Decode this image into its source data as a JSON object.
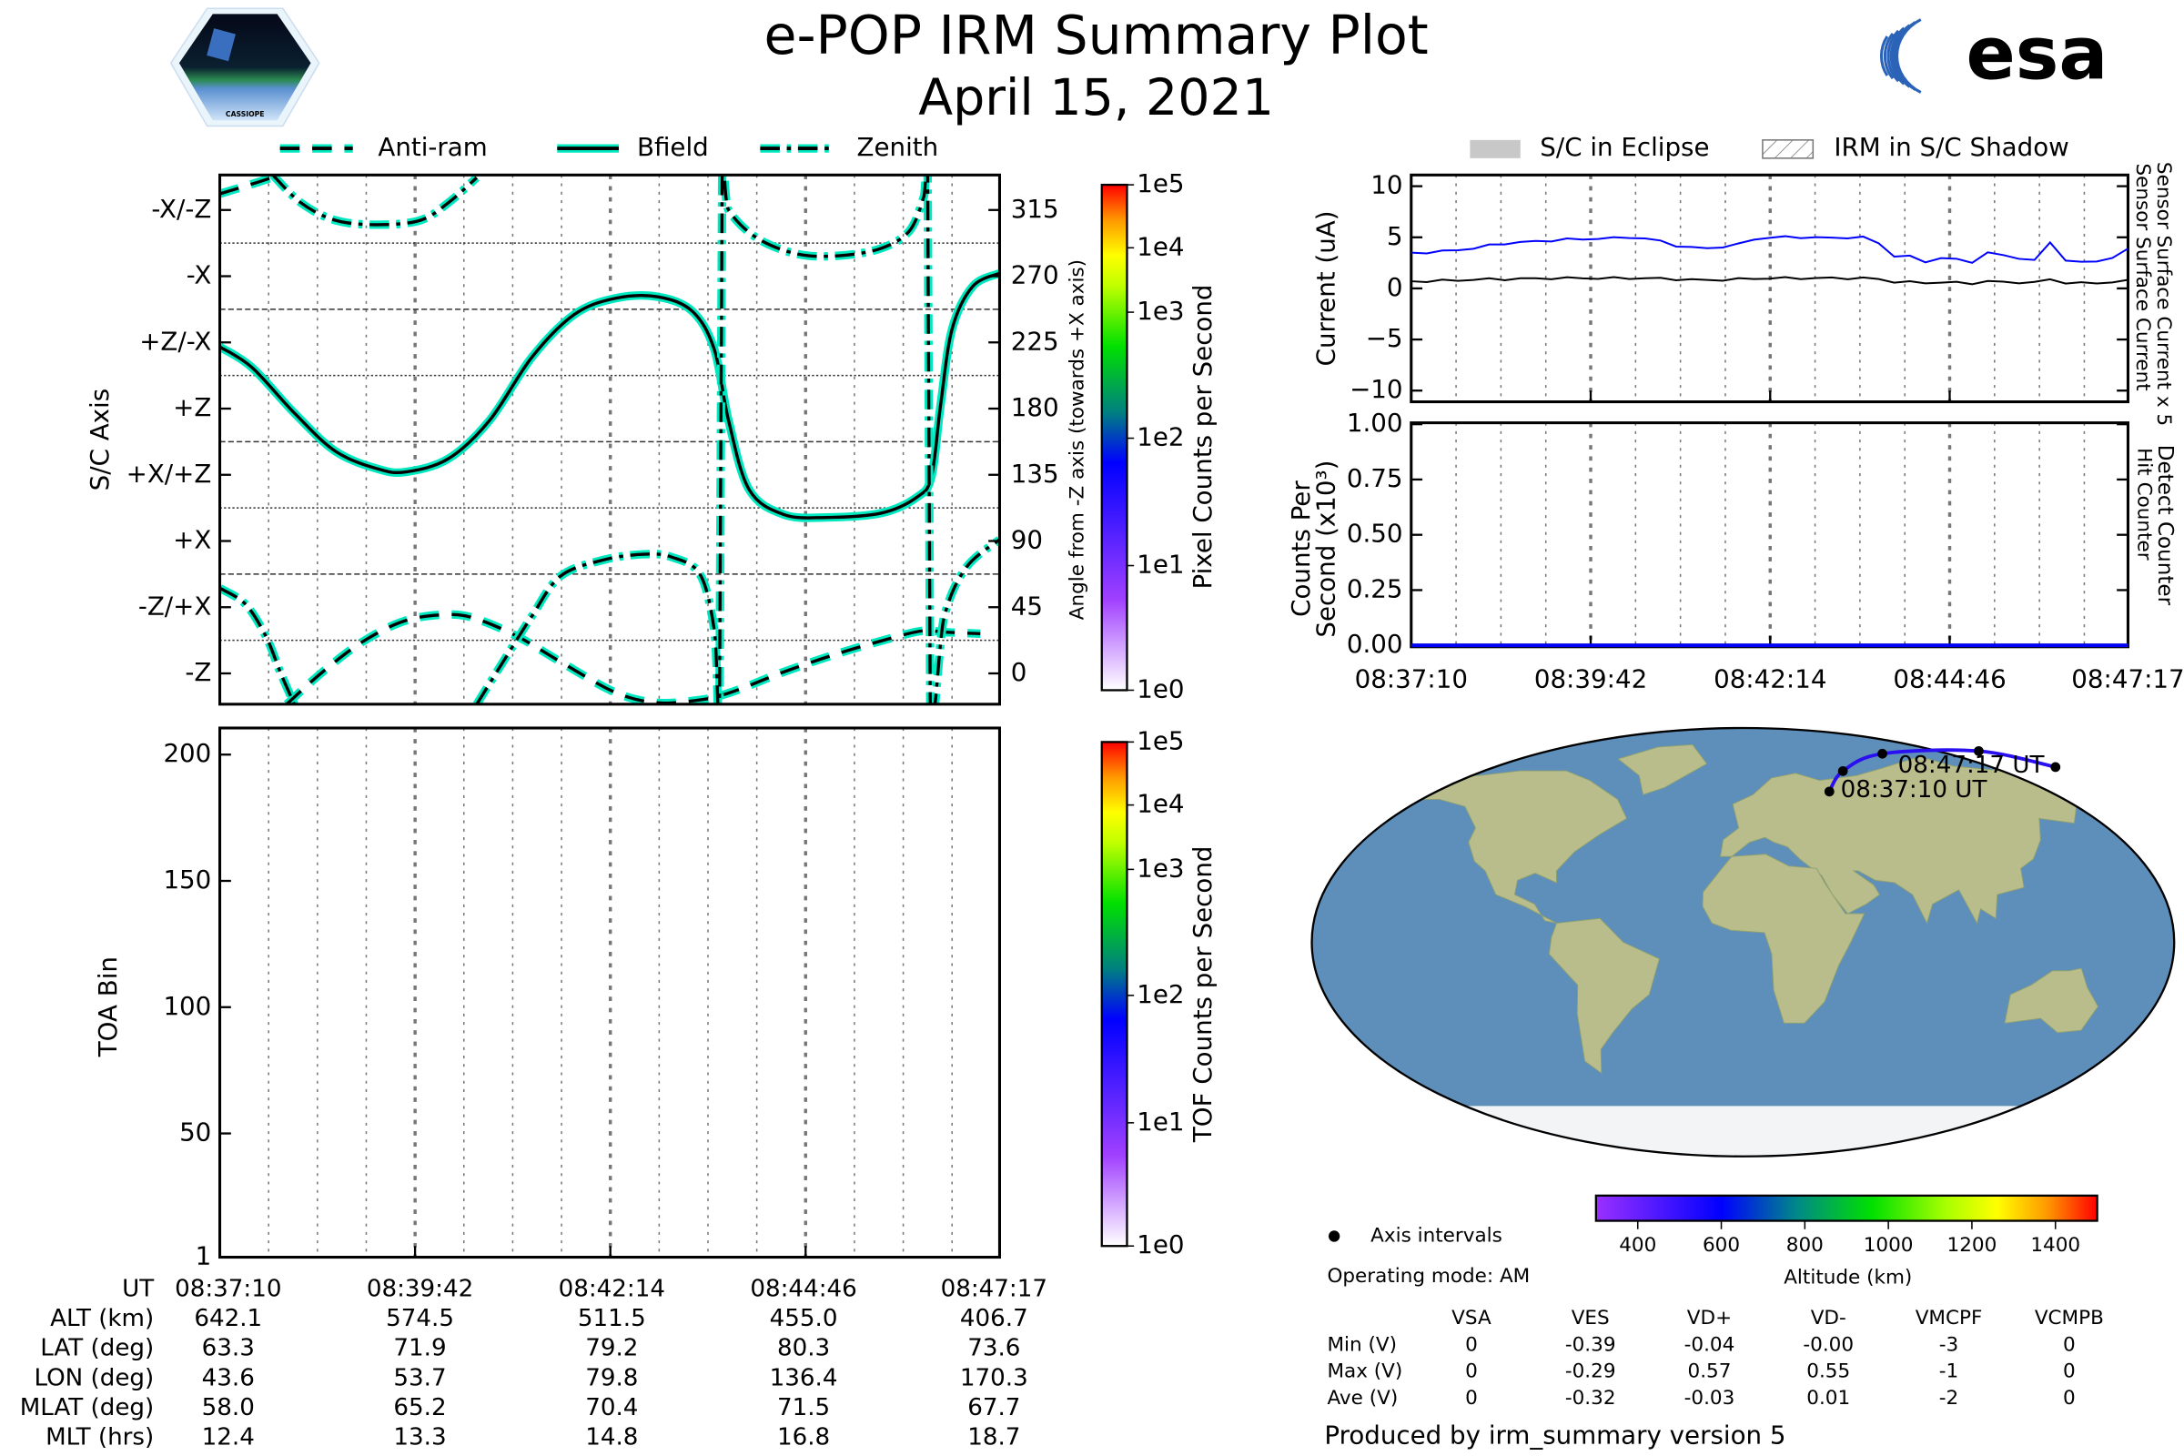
{
  "header": {
    "title": "e-POP IRM Summary Plot",
    "date": "April 15, 2021",
    "logo_left_text": "CASSIOPE",
    "logo_right_text": "esa"
  },
  "legend_left": [
    {
      "label": "Anti-ram",
      "style": "dashed"
    },
    {
      "label": "Bfield",
      "style": "solid"
    },
    {
      "label": "Zenith",
      "style": "dashdot"
    }
  ],
  "legend_right": [
    {
      "label": "S/C in Eclipse",
      "color": "#c8c8c8"
    },
    {
      "label": "IRM in S/C Shadow",
      "style": "hatched"
    }
  ],
  "colors": {
    "line_outline": "#00e8c0",
    "blue": "#0000ff",
    "grid": "#777777"
  },
  "chart_data": [
    {
      "id": "attitude",
      "type": "line",
      "ylabel": "S/C Axis",
      "y2label": "Angle from -Z axis (towards +X axis)",
      "yticklabels": [
        "-X/-Z",
        "-X",
        "+Z/-X",
        "+Z",
        "+X/+Z",
        "+X",
        "-Z/+X",
        "-Z"
      ],
      "y2ticks": [
        "315",
        "270",
        "225",
        "180",
        "135",
        "90",
        "45",
        "0"
      ],
      "y2tick_values": [
        315,
        270,
        225,
        180,
        135,
        90,
        45,
        0
      ],
      "ylim": [
        -21,
        338
      ],
      "xlim_seconds": [
        0,
        607
      ],
      "series": [
        {
          "name": "Bfield",
          "style": "solid",
          "segments": [
            [
              [
                0,
                222
              ],
              [
                25,
                208
              ],
              [
                58,
                177
              ],
              [
                90,
                151
              ],
              [
                123,
                139
              ],
              [
                145,
                137
              ],
              [
                178,
                146
              ],
              [
                210,
                172
              ],
              [
                243,
                215
              ],
              [
                276,
                244
              ],
              [
                308,
                255
              ],
              [
                341,
                256
              ],
              [
                368,
                246
              ],
              [
                385,
                220
              ],
              [
                396,
                172
              ],
              [
                412,
                125
              ],
              [
                439,
                108
              ],
              [
                472,
                106
              ],
              [
                515,
                109
              ],
              [
                543,
                120
              ],
              [
                554,
                134
              ],
              [
                561,
                182
              ],
              [
                570,
                234
              ],
              [
                586,
                263
              ],
              [
                607,
                272
              ]
            ]
          ]
        },
        {
          "name": "Anti-ram",
          "style": "dashed",
          "segments": [
            [
              [
                0,
                326
              ],
              [
                30,
                334
              ],
              [
                47,
                339
              ]
            ],
            [
              [
                52,
                -21
              ],
              [
                80,
                1
              ],
              [
                112,
                22
              ],
              [
                145,
                36
              ],
              [
                178,
                40
              ],
              [
                200,
                37
              ],
              [
                232,
                25
              ],
              [
                265,
                8
              ],
              [
                308,
                -13
              ],
              [
                341,
                -20
              ],
              [
                374,
                -18
              ],
              [
                390,
                -15
              ],
              [
                407,
                -10
              ],
              [
                439,
                1
              ],
              [
                483,
                14
              ],
              [
                527,
                25
              ],
              [
                548,
                29
              ],
              [
                565,
                28
              ],
              [
                592,
                27
              ]
            ]
          ]
        },
        {
          "name": "Zenith",
          "style": "dashdot",
          "segments": [
            [
              [
                0,
                58
              ],
              [
                20,
                47
              ],
              [
                36,
                25
              ],
              [
                47,
                1
              ],
              [
                58,
                -21
              ]
            ],
            [
              [
                41,
                339
              ],
              [
                63,
                320
              ],
              [
                90,
                308
              ],
              [
                123,
                305
              ],
              [
                156,
                308
              ],
              [
                178,
                320
              ],
              [
                200,
                337
              ]
            ],
            [
              [
                200,
                -21
              ],
              [
                222,
                10
              ],
              [
                243,
                39
              ],
              [
                265,
                66
              ],
              [
                298,
                77
              ],
              [
                330,
                81
              ],
              [
                352,
                79
              ],
              [
                374,
                67
              ],
              [
                385,
                29
              ],
              [
                389,
                -18
              ],
              [
                391,
                334
              ],
              [
                396,
                315
              ],
              [
                418,
                296
              ],
              [
                450,
                285
              ],
              [
                483,
                284
              ],
              [
                515,
                289
              ],
              [
                537,
                301
              ],
              [
                548,
                324
              ],
              [
                551,
                336
              ],
              [
                553,
                -18
              ],
              [
                564,
                39
              ],
              [
                581,
                72
              ],
              [
                607,
                91
              ]
            ]
          ]
        }
      ]
    },
    {
      "id": "toa",
      "type": "heatmap",
      "ylabel": "TOA Bin",
      "yticks": [
        "200",
        "150",
        "100",
        "50",
        "1"
      ],
      "ytick_values": [
        200,
        150,
        100,
        50,
        1
      ],
      "ylim": [
        1,
        210
      ],
      "values": []
    },
    {
      "id": "current",
      "type": "line",
      "ylabel": "Current (uA)",
      "yticks": [
        "10",
        "5",
        "0",
        "−5",
        "−10"
      ],
      "ytick_values": [
        10,
        5,
        0,
        -5,
        -10
      ],
      "ylim": [
        -11,
        11
      ],
      "right_labels": [
        "Sensor Surface Current x 5",
        "Sensor Surface Current"
      ],
      "series": [
        {
          "name": "Sensor Surface Current x 5",
          "color": "#0000ff",
          "values": [
            3.5,
            3.5,
            3.6,
            3.8,
            3.9,
            4.2,
            4.4,
            4.5,
            4.6,
            4.7,
            4.8,
            4.8,
            4.9,
            4.9,
            5.0,
            4.9,
            4.6,
            4.2,
            4.0,
            3.9,
            4.1,
            4.3,
            4.8,
            5.0,
            5.0,
            5.0,
            5.0,
            4.9,
            5.0,
            5.0,
            4.4,
            3.2,
            3.1,
            2.6,
            3.0,
            2.8,
            2.6,
            3.5,
            3.2,
            3.0,
            2.7,
            4.5,
            2.8,
            2.5,
            2.7,
            3.0,
            3.8
          ]
        },
        {
          "name": "Sensor Surface Current",
          "color": "#000000",
          "values": [
            0.7,
            0.7,
            0.75,
            0.8,
            0.85,
            0.9,
            0.9,
            0.95,
            0.95,
            1.0,
            1.0,
            1.0,
            1.0,
            1.0,
            1.0,
            1.0,
            0.95,
            0.9,
            0.85,
            0.8,
            0.85,
            0.9,
            0.95,
            1.0,
            1.0,
            1.0,
            1.0,
            1.0,
            1.0,
            1.0,
            0.9,
            0.65,
            0.6,
            0.55,
            0.6,
            0.55,
            0.5,
            0.7,
            0.6,
            0.6,
            0.55,
            0.9,
            0.55,
            0.5,
            0.55,
            0.6,
            0.75
          ]
        }
      ]
    },
    {
      "id": "counts",
      "type": "line",
      "ylabel_line1": "Counts Per",
      "ylabel_line2": "Second (x10³)",
      "yticks": [
        "1.00",
        "0.75",
        "0.50",
        "0.25",
        "0.00"
      ],
      "ytick_values": [
        1.0,
        0.75,
        0.5,
        0.25,
        0.0
      ],
      "ylim": [
        0,
        1
      ],
      "right_labels": [
        "Detect Counter",
        "Hit Counter"
      ],
      "series": [
        {
          "name": "Detect Counter",
          "color": "#0000ff",
          "values": [
            0,
            0
          ]
        },
        {
          "name": "Hit Counter",
          "color": "#000000",
          "values": [
            0,
            0
          ]
        }
      ]
    }
  ],
  "time_axis": {
    "labels": [
      "08:37:10",
      "08:39:42",
      "08:42:14",
      "08:44:46",
      "08:47:17"
    ],
    "seconds": [
      0,
      152,
      304,
      456,
      607
    ]
  },
  "colorbar_pixel": {
    "label": "Pixel Counts per Second",
    "ticks": [
      "1e5",
      "1e4",
      "1e3",
      "1e2",
      "1e1",
      "1e0"
    ]
  },
  "colorbar_tof": {
    "label": "TOF Counts per Second",
    "ticks": [
      "1e5",
      "1e4",
      "1e3",
      "1e2",
      "1e1",
      "1e0"
    ]
  },
  "orbit_table": {
    "rows": [
      {
        "label": "UT",
        "values": [
          "08:37:10",
          "08:39:42",
          "08:42:14",
          "08:44:46",
          "08:47:17"
        ]
      },
      {
        "label": "ALT (km)",
        "values": [
          "642.1",
          "574.5",
          "511.5",
          "455.0",
          "406.7"
        ]
      },
      {
        "label": "LAT (deg)",
        "values": [
          "63.3",
          "71.9",
          "79.2",
          "80.3",
          "73.6"
        ]
      },
      {
        "label": "LON (deg)",
        "values": [
          "43.6",
          "53.7",
          "79.8",
          "136.4",
          "170.3"
        ]
      },
      {
        "label": "MLAT (deg)",
        "values": [
          "58.0",
          "65.2",
          "70.4",
          "71.5",
          "67.7"
        ]
      },
      {
        "label": "MLT (hrs)",
        "values": [
          "12.4",
          "13.3",
          "14.8",
          "16.8",
          "18.7"
        ]
      }
    ]
  },
  "map": {
    "start_label": "08:37:10 UT",
    "end_label": "08:47:17 UT",
    "legend_label": "Axis intervals",
    "altitude_colorbar": {
      "label": "Altitude (km)",
      "ticks": [
        "400",
        "600",
        "800",
        "1000",
        "1200",
        "1400"
      ],
      "tick_values": [
        400,
        600,
        800,
        1000,
        1200,
        1400
      ],
      "range": [
        300,
        1500
      ]
    }
  },
  "operating_mode": "Operating mode: AM",
  "stats": {
    "columns": [
      "VSA",
      "VES",
      "VD+",
      "VD-",
      "VMCPF",
      "VCMPB"
    ],
    "rows": [
      {
        "label": "Min (V)",
        "values": [
          "0",
          "-0.39",
          "-0.04",
          "-0.00",
          "-3",
          "0"
        ]
      },
      {
        "label": "Max (V)",
        "values": [
          "0",
          "-0.29",
          "0.57",
          "0.55",
          "-1",
          "0"
        ]
      },
      {
        "label": "Ave (V)",
        "values": [
          "0",
          "-0.32",
          "-0.03",
          "0.01",
          "-2",
          "0"
        ]
      }
    ]
  },
  "footer": "Produced by irm_summary version 5"
}
